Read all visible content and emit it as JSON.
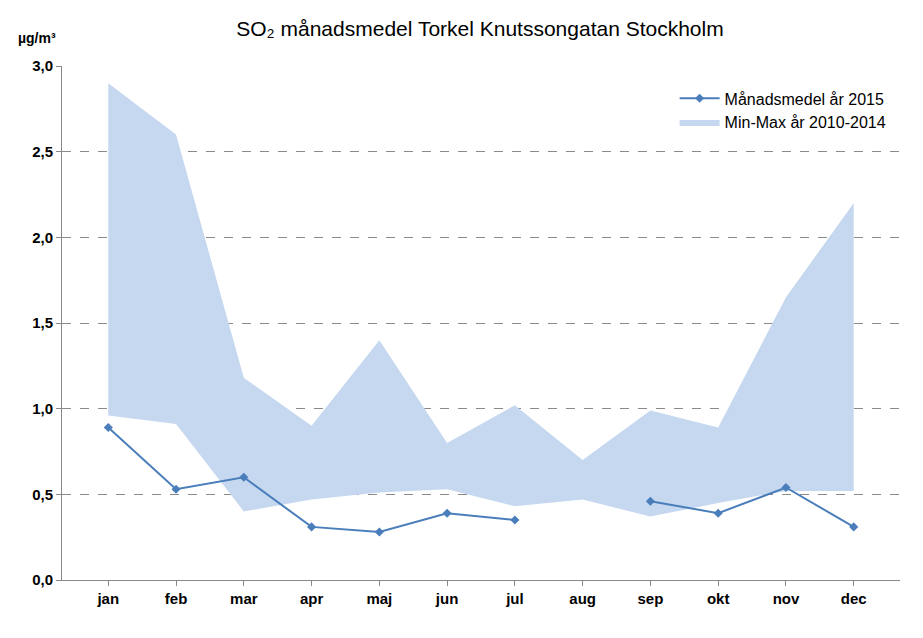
{
  "chart_data": {
    "type": "line",
    "title": "SO₂ månadsmedel Torkel Knutssongatan Stockholm",
    "ylabel": "µg/m³",
    "categories": [
      "jan",
      "feb",
      "mar",
      "apr",
      "maj",
      "jun",
      "jul",
      "aug",
      "sep",
      "okt",
      "nov",
      "dec"
    ],
    "series": [
      {
        "name": "Min-Max år 2010-2014",
        "type": "range_area",
        "color": "#c6d8ef",
        "min": [
          0.96,
          0.91,
          0.4,
          0.47,
          0.51,
          0.53,
          0.43,
          0.47,
          0.37,
          0.45,
          0.52,
          0.52
        ],
        "max": [
          2.9,
          2.6,
          1.18,
          0.9,
          1.4,
          0.8,
          1.02,
          0.7,
          0.99,
          0.89,
          1.65,
          2.2
        ]
      },
      {
        "name": "Månadsmedel år 2015",
        "type": "line",
        "color": "#4a7ebb",
        "marker": "diamond",
        "values": [
          0.89,
          0.53,
          0.6,
          0.31,
          0.28,
          0.39,
          0.35,
          null,
          0.46,
          0.39,
          0.54,
          0.31
        ]
      }
    ],
    "ylim": [
      0,
      3
    ],
    "yticks": [
      {
        "value": 0,
        "label": "0,0"
      },
      {
        "value": 0.5,
        "label": "0,5"
      },
      {
        "value": 1,
        "label": "1,0"
      },
      {
        "value": 1.5,
        "label": "1,5"
      },
      {
        "value": 2,
        "label": "2,0"
      },
      {
        "value": 2.5,
        "label": "2,5"
      },
      {
        "value": 3,
        "label": "3,0"
      }
    ],
    "grid": true,
    "legend": "upper right"
  }
}
